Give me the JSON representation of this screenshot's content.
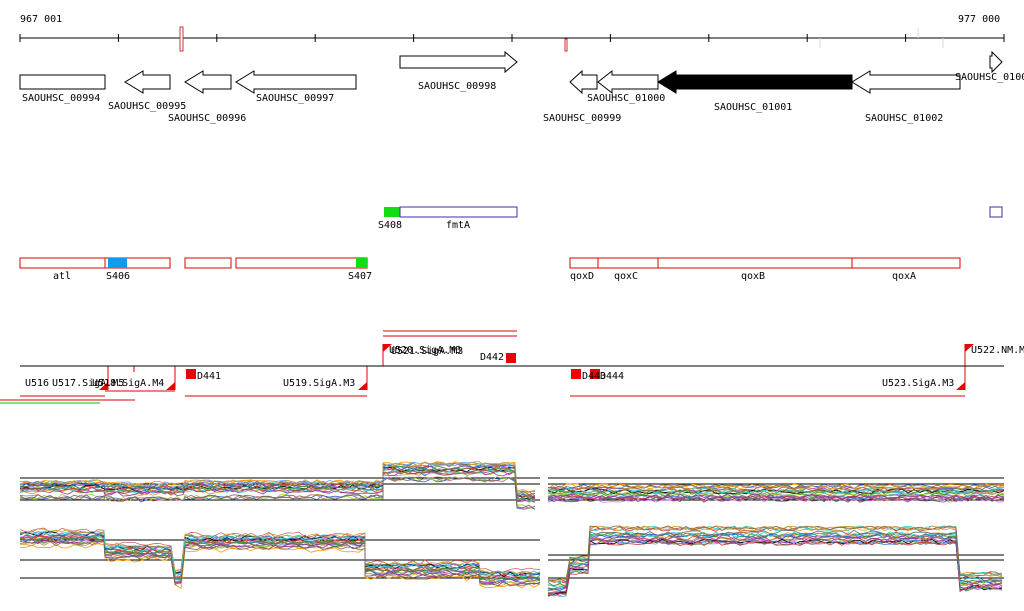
{
  "ruler": {
    "start": "967 001",
    "end": "977 000"
  },
  "genes": [
    "SAOUHSC_00994",
    "SAOUHSC_00995",
    "SAOUHSC_00996",
    "SAOUHSC_00997",
    "SAOUHSC_00998",
    "SAOUHSC_00999",
    "SAOUHSC_01000",
    "SAOUHSC_01001",
    "SAOUHSC_01002",
    "SAOUHSC_0100"
  ],
  "features": [
    "S408",
    "fmtA",
    "atl",
    "S406",
    "S407",
    "qoxD",
    "qoxC",
    "qoxB",
    "qoxA"
  ],
  "regulation": [
    "U516",
    "U517.SigA.M5",
    "U518.SigA.M4",
    "D441",
    "U519.SigA.M3",
    "U520.SigA.M3",
    "U521.SigA.M3",
    "D442",
    "D443",
    "D444",
    "U523.SigA.M3",
    "U522.NM.M"
  ]
}
